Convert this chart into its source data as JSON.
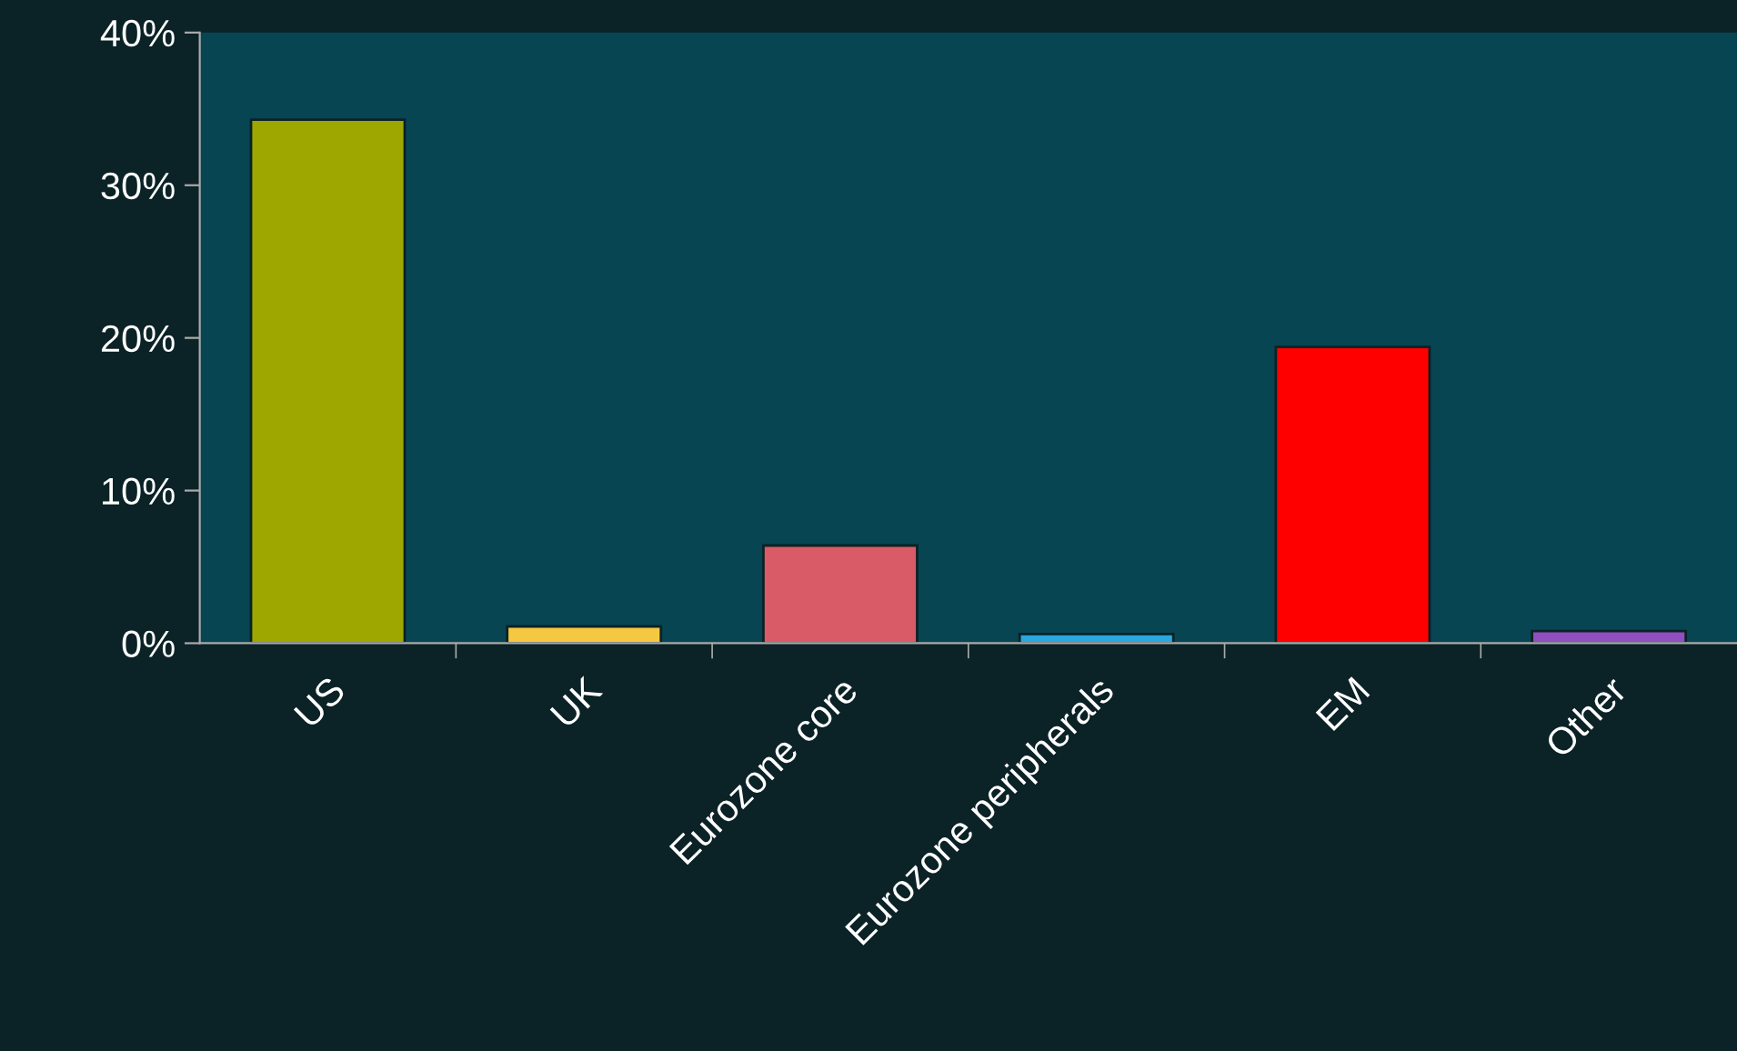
{
  "chart_data": {
    "type": "bar",
    "categories": [
      "US",
      "UK",
      "Eurozone core",
      "Eurozone peripherals",
      "EM",
      "Other"
    ],
    "values": [
      34.3,
      1.1,
      6.4,
      0.6,
      19.4,
      0.8
    ],
    "colors": [
      "#9ea600",
      "#f5c842",
      "#d95b68",
      "#29a8e0",
      "#ff0000",
      "#8f4fc0"
    ],
    "ylim": [
      0,
      40
    ],
    "yticks": [
      {
        "value": 0,
        "label": "0%"
      },
      {
        "value": 10,
        "label": "10%"
      },
      {
        "value": 20,
        "label": "20%"
      },
      {
        "value": 30,
        "label": "30%"
      },
      {
        "value": 40,
        "label": "40%"
      }
    ],
    "grid": false,
    "legend": false
  }
}
